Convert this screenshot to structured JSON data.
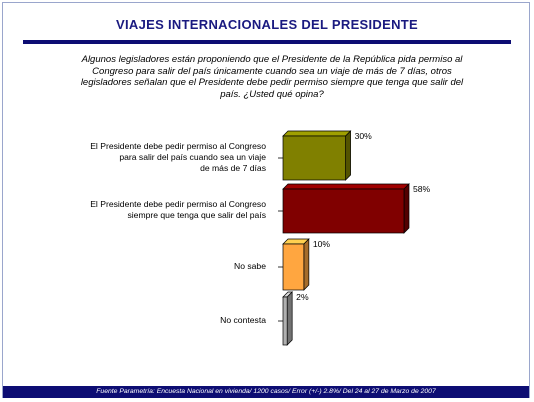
{
  "title": "VIAJES INTERNACIONALES DEL PRESIDENTE",
  "question": "Algunos legisladores están proponiendo que el Presidente de la República pida permiso al Congreso para salir del país únicamente cuando sea un viaje de más de 7 días, otros legisladores señalan que el Presidente debe pedir permiso siempre que tenga que salir del país. ¿Usted qué opina?",
  "footer": "Fuente Parametría: Encuesta Nacional en vivienda/ 1200 casos/ Error (+/-) 2.8%/ Del 24 al 27 de Marzo de 2007",
  "chart_data": {
    "type": "bar",
    "orientation": "horizontal",
    "title": "",
    "xlabel": "",
    "ylabel": "",
    "categories": [
      "El Presidente debe pedir permiso al Congreso para salir del país cuando sea un viaje de más de 7 días",
      "El Presidente debe pedir permiso al Congreso siempre que tenga que salir del país",
      "No sabe",
      "No contesta"
    ],
    "label_lines": [
      [
        "El Presidente debe pedir permiso al Congreso",
        "para salir del país cuando sea un viaje",
        "de más de 7 días"
      ],
      [
        "El Presidente debe pedir permiso al Congreso",
        "siempre que tenga que salir del país"
      ],
      [
        "No sabe"
      ],
      [
        "No contesta"
      ]
    ],
    "values": [
      30,
      58,
      10,
      2
    ],
    "value_labels": [
      "30%",
      "58%",
      "10%",
      "2%"
    ],
    "colors": [
      "#808000",
      "#800000",
      "#ffa640",
      "#b0b0b0"
    ],
    "xlim": [
      0,
      58
    ],
    "grid": false,
    "legend": "none"
  }
}
